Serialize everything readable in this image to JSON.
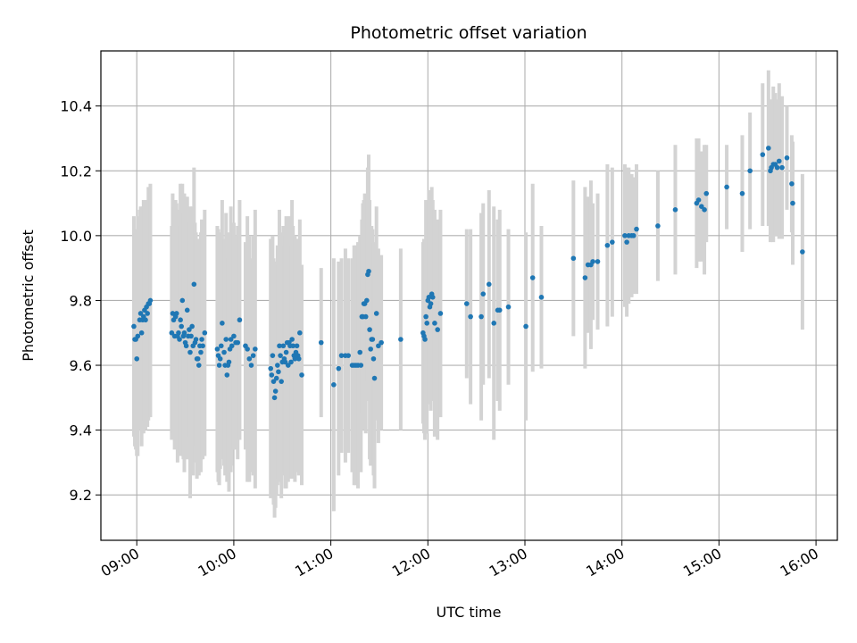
{
  "chart_data": {
    "type": "scatter",
    "title": "Photometric offset variation",
    "xlabel": "UTC time",
    "ylabel": "Photometric offset",
    "x_tick_labels": [
      "09:00",
      "10:00",
      "11:00",
      "12:00",
      "13:00",
      "14:00",
      "15:00",
      "16:00"
    ],
    "y_tick_labels": [
      "9.2",
      "9.4",
      "9.6",
      "9.8",
      "10.0",
      "10.2",
      "10.4"
    ],
    "x_ticks_hours": [
      9,
      10,
      11,
      12,
      13,
      14,
      15,
      16
    ],
    "y_ticks": [
      9.2,
      9.4,
      9.6,
      9.8,
      10.0,
      10.2,
      10.4
    ],
    "xlim_hours": [
      8.63,
      16.22
    ],
    "ylim": [
      9.06,
      10.57
    ],
    "grid": true,
    "colors": {
      "point": "#1f77b4",
      "errorbar": "#d3d3d3",
      "grid": "#b0b0b0"
    },
    "series": [
      {
        "x": [
          8.97,
          8.98,
          8.99,
          9.0,
          9.01,
          9.03,
          9.04,
          9.05,
          9.06,
          9.07,
          9.08,
          9.09,
          9.1,
          9.11,
          9.12,
          9.13,
          9.14,
          9.36,
          9.37,
          9.38,
          9.39,
          9.4,
          9.41,
          9.42,
          9.43,
          9.44,
          9.45,
          9.46,
          9.47,
          9.48,
          9.49,
          9.5,
          9.51,
          9.52,
          9.53,
          9.54,
          9.55,
          9.56,
          9.57,
          9.58,
          9.59,
          9.6,
          9.61,
          9.62,
          9.63,
          9.64,
          9.65,
          9.66,
          9.67,
          9.68,
          9.7,
          9.83,
          9.84,
          9.85,
          9.86,
          9.87,
          9.88,
          9.9,
          9.91,
          9.92,
          9.93,
          9.94,
          9.95,
          9.96,
          9.97,
          9.98,
          10.0,
          10.02,
          10.04,
          10.06,
          10.12,
          10.14,
          10.16,
          10.18,
          10.2,
          10.22,
          10.38,
          10.39,
          10.4,
          10.41,
          10.42,
          10.43,
          10.44,
          10.45,
          10.46,
          10.47,
          10.48,
          10.49,
          10.5,
          10.51,
          10.52,
          10.53,
          10.54,
          10.55,
          10.56,
          10.57,
          10.58,
          10.59,
          10.6,
          10.61,
          10.62,
          10.63,
          10.64,
          10.65,
          10.66,
          10.67,
          10.68,
          10.7,
          10.9,
          11.03,
          11.08,
          11.11,
          11.15,
          11.18,
          11.22,
          11.24,
          11.26,
          11.28,
          11.3,
          11.31,
          11.32,
          11.33,
          11.34,
          11.35,
          11.36,
          11.37,
          11.38,
          11.39,
          11.4,
          11.41,
          11.42,
          11.43,
          11.44,
          11.45,
          11.47,
          11.49,
          11.52,
          11.72,
          11.95,
          11.96,
          11.97,
          11.98,
          11.99,
          12.0,
          12.01,
          12.02,
          12.03,
          12.04,
          12.05,
          12.07,
          12.1,
          12.13,
          12.4,
          12.44,
          12.55,
          12.57,
          12.63,
          12.68,
          12.72,
          12.74,
          12.83,
          13.01,
          13.08,
          13.17,
          13.5,
          13.62,
          13.65,
          13.68,
          13.7,
          13.75,
          13.85,
          13.9,
          14.03,
          14.05,
          14.07,
          14.1,
          14.12,
          14.15,
          14.37,
          14.55,
          14.77,
          14.79,
          14.82,
          14.85,
          14.87,
          15.08,
          15.24,
          15.32,
          15.45,
          15.51,
          15.53,
          15.54,
          15.56,
          15.58,
          15.6,
          15.62,
          15.65,
          15.7,
          15.75,
          15.76,
          15.86
        ],
        "y": [
          9.72,
          9.68,
          9.68,
          9.62,
          9.69,
          9.74,
          9.76,
          9.7,
          9.74,
          9.75,
          9.77,
          9.74,
          9.78,
          9.76,
          9.79,
          9.79,
          9.8,
          9.7,
          9.76,
          9.74,
          9.69,
          9.75,
          9.76,
          9.69,
          9.7,
          9.68,
          9.74,
          9.72,
          9.8,
          9.69,
          9.7,
          9.67,
          9.66,
          9.77,
          9.69,
          9.71,
          9.64,
          9.69,
          9.72,
          9.66,
          9.85,
          9.67,
          9.68,
          9.62,
          9.62,
          9.6,
          9.66,
          9.64,
          9.68,
          9.66,
          9.7,
          9.65,
          9.63,
          9.6,
          9.62,
          9.66,
          9.73,
          9.64,
          9.6,
          9.68,
          9.57,
          9.6,
          9.61,
          9.65,
          9.68,
          9.66,
          9.69,
          9.67,
          9.67,
          9.74,
          9.66,
          9.65,
          9.62,
          9.6,
          9.63,
          9.65,
          9.59,
          9.57,
          9.63,
          9.55,
          9.5,
          9.52,
          9.56,
          9.6,
          9.58,
          9.66,
          9.63,
          9.55,
          9.61,
          9.66,
          9.62,
          9.61,
          9.64,
          9.67,
          9.6,
          9.67,
          9.66,
          9.61,
          9.68,
          9.66,
          9.63,
          9.62,
          9.64,
          9.66,
          9.63,
          9.62,
          9.7,
          9.57,
          9.67,
          9.54,
          9.59,
          9.63,
          9.63,
          9.63,
          9.6,
          9.6,
          9.6,
          9.6,
          9.64,
          9.6,
          9.75,
          9.75,
          9.79,
          9.79,
          9.75,
          9.8,
          9.88,
          9.89,
          9.71,
          9.65,
          9.68,
          9.68,
          9.62,
          9.56,
          9.76,
          9.66,
          9.67,
          9.68,
          9.7,
          9.69,
          9.68,
          9.75,
          9.73,
          9.8,
          9.81,
          9.78,
          9.79,
          9.82,
          9.81,
          9.73,
          9.71,
          9.76,
          9.79,
          9.75,
          9.75,
          9.82,
          9.85,
          9.73,
          9.77,
          9.77,
          9.78,
          9.72,
          9.87,
          9.81,
          9.93,
          9.87,
          9.91,
          9.91,
          9.92,
          9.92,
          9.97,
          9.98,
          10.0,
          9.98,
          10.0,
          10.0,
          10.0,
          10.02,
          10.03,
          10.08,
          10.1,
          10.11,
          10.09,
          10.08,
          10.13,
          10.15,
          10.13,
          10.2,
          10.25,
          10.27,
          10.2,
          10.21,
          10.22,
          10.22,
          10.21,
          10.23,
          10.21,
          10.24,
          10.16,
          10.1,
          9.95
        ],
        "yerr": [
          0.34,
          0.33,
          0.34,
          0.3,
          0.37,
          0.34,
          0.33,
          0.35,
          0.35,
          0.36,
          0.34,
          0.34,
          0.33,
          0.35,
          0.36,
          0.34,
          0.36,
          0.33,
          0.37,
          0.35,
          0.35,
          0.36,
          0.34,
          0.39,
          0.37,
          0.35,
          0.42,
          0.38,
          0.36,
          0.38,
          0.43,
          0.35,
          0.35,
          0.35,
          0.38,
          0.33,
          0.45,
          0.35,
          0.37,
          0.4,
          0.36,
          0.37,
          0.33,
          0.37,
          0.35,
          0.34,
          0.33,
          0.37,
          0.37,
          0.35,
          0.38,
          0.38,
          0.39,
          0.37,
          0.34,
          0.35,
          0.38,
          0.35,
          0.34,
          0.39,
          0.33,
          0.33,
          0.4,
          0.33,
          0.41,
          0.37,
          0.35,
          0.33,
          0.36,
          0.37,
          0.32,
          0.41,
          0.38,
          0.33,
          0.37,
          0.43,
          0.4,
          0.35,
          0.37,
          0.38,
          0.37,
          0.36,
          0.36,
          0.37,
          0.33,
          0.42,
          0.38,
          0.36,
          0.35,
          0.37,
          0.35,
          0.39,
          0.42,
          0.35,
          0.36,
          0.39,
          0.37,
          0.36,
          0.43,
          0.37,
          0.37,
          0.38,
          0.34,
          0.31,
          0.36,
          0.36,
          0.35,
          0.34,
          0.23,
          0.39,
          0.33,
          0.3,
          0.33,
          0.3,
          0.33,
          0.37,
          0.37,
          0.38,
          0.36,
          0.33,
          0.3,
          0.35,
          0.32,
          0.34,
          0.36,
          0.31,
          0.33,
          0.36,
          0.4,
          0.36,
          0.35,
          0.34,
          0.36,
          0.34,
          0.33,
          0.3,
          0.27,
          0.28,
          0.28,
          0.3,
          0.31,
          0.36,
          0.34,
          0.3,
          0.33,
          0.3,
          0.33,
          0.33,
          0.3,
          0.35,
          0.34,
          0.32,
          0.23,
          0.27,
          0.32,
          0.28,
          0.29,
          0.36,
          0.28,
          0.31,
          0.24,
          0.29,
          0.29,
          0.22,
          0.24,
          0.28,
          0.21,
          0.26,
          0.18,
          0.21,
          0.25,
          0.23,
          0.22,
          0.23,
          0.21,
          0.19,
          0.18,
          0.2,
          0.17,
          0.2,
          0.2,
          0.19,
          0.17,
          0.2,
          0.15,
          0.13,
          0.18,
          0.18,
          0.22,
          0.24,
          0.22,
          0.21,
          0.24,
          0.22,
          0.21,
          0.24,
          0.22,
          0.16,
          0.15,
          0.19,
          0.24
        ]
      }
    ]
  }
}
